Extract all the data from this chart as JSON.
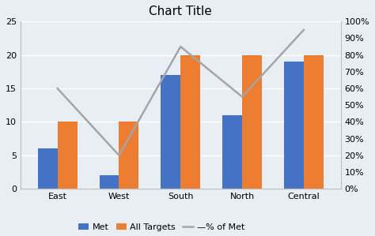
{
  "categories": [
    "East",
    "West",
    "South",
    "North",
    "Central"
  ],
  "met": [
    6,
    2,
    17,
    11,
    19
  ],
  "all_targets": [
    10,
    10,
    20,
    20,
    20
  ],
  "pct_of_met": [
    0.6,
    0.2,
    0.85,
    0.55,
    0.95
  ],
  "bar_color_met": "#4472C4",
  "bar_color_targets": "#ED7D31",
  "line_color": "#A5A5A5",
  "title": "Chart Title",
  "ylim_left": [
    0,
    25
  ],
  "ylim_right": [
    0,
    1.0
  ],
  "yticks_left": [
    0,
    5,
    10,
    15,
    20,
    25
  ],
  "yticks_right": [
    0.0,
    0.1,
    0.2,
    0.3,
    0.4,
    0.5,
    0.6,
    0.7,
    0.8,
    0.9,
    1.0
  ],
  "legend_labels": [
    "Met",
    "All Targets",
    "—% of Met"
  ],
  "bg_color": "#E9EEF5",
  "plot_bg_color": "#E9EEF5",
  "title_fontsize": 11,
  "tick_fontsize": 8,
  "legend_fontsize": 8,
  "bar_width": 0.32,
  "grid_color": "#FFFFFF",
  "spine_color": "#BFBFBF"
}
